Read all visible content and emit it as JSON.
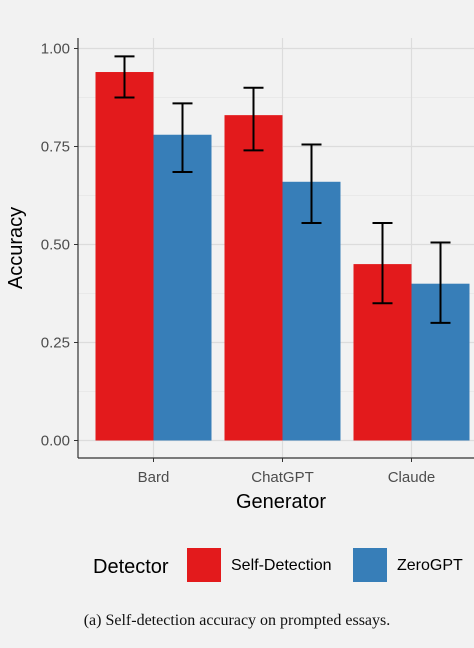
{
  "caption": "(a) Self-detection accuracy on prompted essays.",
  "chart_data": {
    "type": "bar",
    "xlabel": "Generator",
    "ylabel": "Accuracy",
    "categories": [
      "Bard",
      "ChatGPT",
      "Claude"
    ],
    "ylim": [
      0,
      1.05
    ],
    "yticks": [
      "0.00",
      "0.25",
      "0.50",
      "0.75",
      "1.00"
    ],
    "grid": true,
    "legend_title": "Detector",
    "legend_position": "bottom",
    "series": [
      {
        "name": "Self-Detection",
        "color": "#e31a1c",
        "values": [
          0.94,
          0.83,
          0.45
        ],
        "error_low": [
          0.875,
          0.74,
          0.35
        ],
        "error_high": [
          0.98,
          0.9,
          0.555
        ]
      },
      {
        "name": "ZeroGPT",
        "color": "#377eb8",
        "values": [
          0.78,
          0.66,
          0.4
        ],
        "error_low": [
          0.685,
          0.555,
          0.3
        ],
        "error_high": [
          0.86,
          0.755,
          0.505
        ]
      }
    ]
  }
}
